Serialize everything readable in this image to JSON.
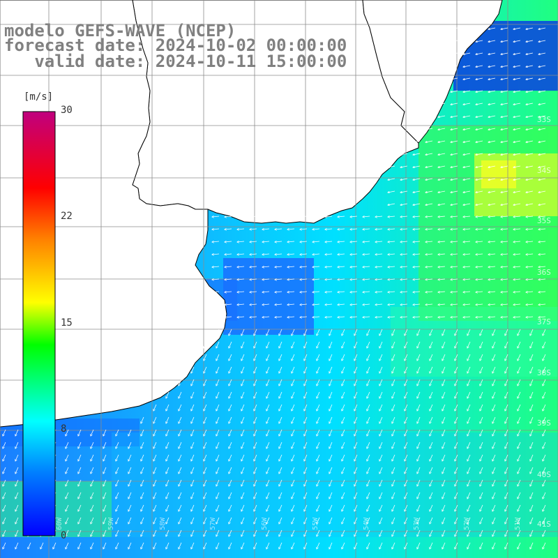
{
  "title": {
    "line1": "modelo GEFS-WAVE (NCEP)",
    "line2": "forecast date: 2024-10-02 00:00:00",
    "line3": "   valid date: 2024-10-11 15:00:00"
  },
  "colorbar": {
    "unit": "[m/s]",
    "ticks": [
      "30",
      "22",
      "15",
      "8",
      "0"
    ],
    "scale_min": 0,
    "scale_max": 30,
    "tick_values": [
      30,
      22,
      15,
      8,
      0
    ],
    "colors": [
      "#0000ff",
      "#00aaff",
      "#00ffff",
      "#00ff00",
      "#ffff00",
      "#ff8000",
      "#ff0000",
      "#c0007f"
    ]
  },
  "latitude_labels": [
    "33S",
    "34S",
    "35S",
    "36S",
    "37S",
    "38S",
    "39S",
    "40S",
    "41S"
  ],
  "longitude_labels": [
    "60W",
    "59W",
    "58W",
    "57W",
    "56W",
    "55W",
    "54W",
    "53W",
    "52W",
    "51W"
  ],
  "land_color": "#ffffff",
  "grid_color": "#8c8c8c"
}
